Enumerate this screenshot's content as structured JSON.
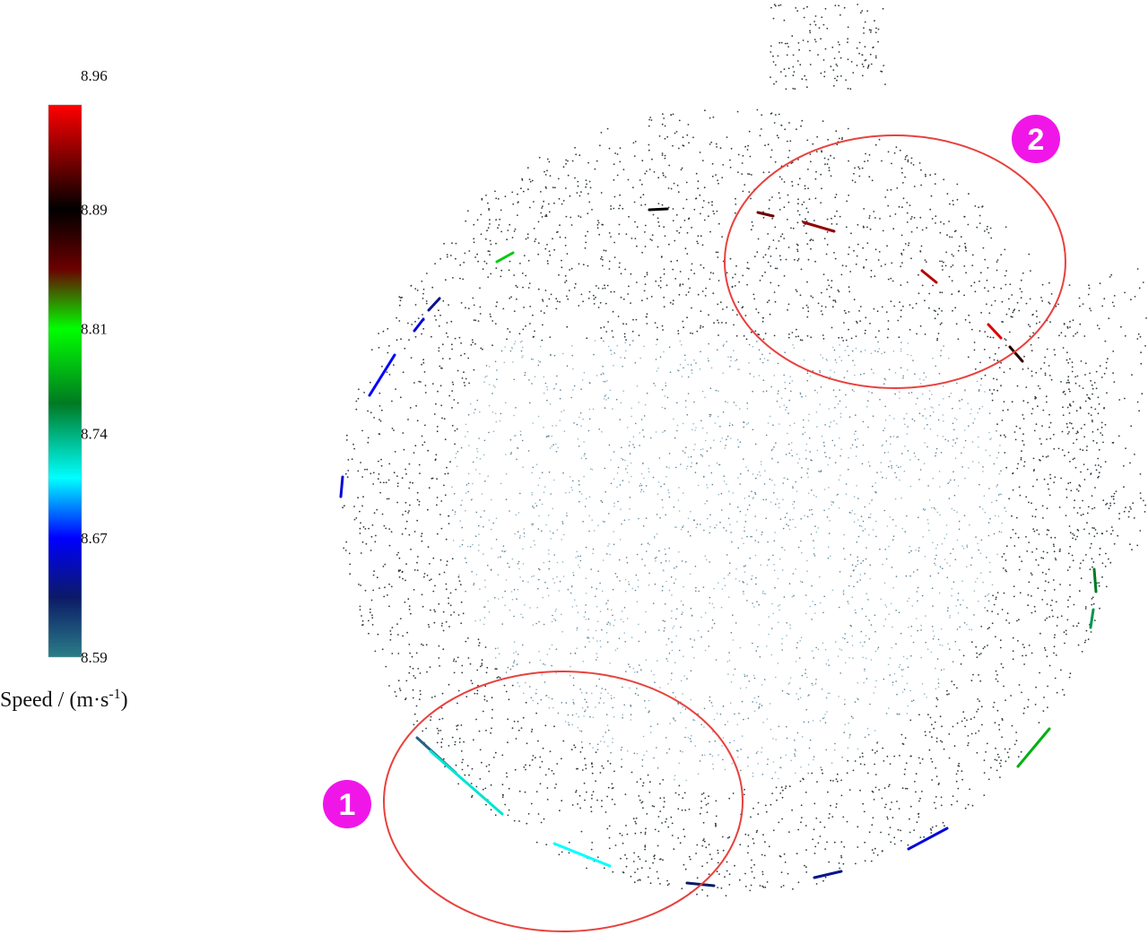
{
  "chart_data": {
    "type": "scatter",
    "title": "",
    "colorbar": {
      "label_main": "Speed / (m·s",
      "label_sup": "-1",
      "label_end": ")",
      "min": 8.59,
      "max": 8.96,
      "ticks": [
        {
          "value": 8.96,
          "label": "8.96"
        },
        {
          "value": 8.89,
          "label": "8.89"
        },
        {
          "value": 8.81,
          "label": "8.81"
        },
        {
          "value": 8.74,
          "label": "8.74"
        },
        {
          "value": 8.67,
          "label": "8.67"
        },
        {
          "value": 8.59,
          "label": "8.59"
        }
      ],
      "stops": [
        {
          "value": 8.59,
          "color": "#2a7d88"
        },
        {
          "value": 8.63,
          "color": "#0b1a66"
        },
        {
          "value": 8.67,
          "color": "#0000ff"
        },
        {
          "value": 8.71,
          "color": "#00ffff"
        },
        {
          "value": 8.76,
          "color": "#007a22"
        },
        {
          "value": 8.81,
          "color": "#00ff00"
        },
        {
          "value": 8.85,
          "color": "#6b0000"
        },
        {
          "value": 8.89,
          "color": "#000000"
        },
        {
          "value": 8.96,
          "color": "#ff0000"
        }
      ]
    },
    "point_cloud": {
      "description_colors": {
        "sparse": "#2e3a40",
        "face": "#8fb6c8"
      }
    },
    "marked_regions": [
      {
        "label": "1",
        "speed_range": [
          8.59,
          8.74
        ]
      },
      {
        "label": "2",
        "speed_range": [
          8.85,
          8.96
        ]
      }
    ],
    "colors": {
      "ellipse": "#e8413d",
      "badge": "#f016e8"
    }
  }
}
